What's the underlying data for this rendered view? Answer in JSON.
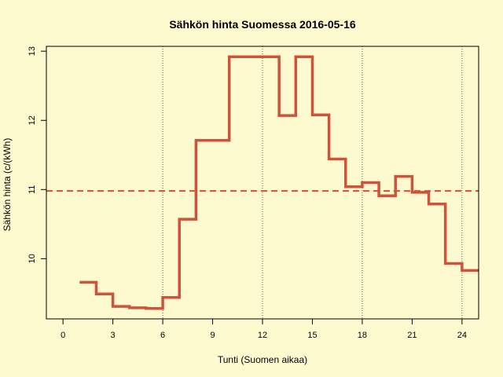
{
  "chart_data": {
    "type": "line",
    "style": "step",
    "title": "Sähkön hinta Suomessa 2016-05-16",
    "xlabel": "Tunti (Suomen aikaa)",
    "ylabel": "Sähkön hinta (c/(kWh)",
    "xlim": [
      -1,
      25
    ],
    "ylim": [
      9.13,
      13.07
    ],
    "x_ticks": [
      0,
      3,
      6,
      9,
      12,
      15,
      18,
      21,
      24
    ],
    "y_ticks": [
      10,
      11,
      12,
      13
    ],
    "vertical_gridlines_x": [
      6,
      12,
      18,
      24
    ],
    "mean_line_y": 10.98,
    "series": [
      {
        "x": [
          1,
          2,
          3,
          4,
          5,
          6,
          7,
          8,
          9,
          10,
          11,
          12,
          13,
          14,
          15,
          16,
          17,
          18,
          19,
          20,
          21,
          22,
          23,
          24
        ],
        "values": [
          9.66,
          9.49,
          9.31,
          9.29,
          9.28,
          9.44,
          10.57,
          11.71,
          11.71,
          12.92,
          12.92,
          12.92,
          12.07,
          12.92,
          12.08,
          11.44,
          11.04,
          11.1,
          10.91,
          11.19,
          10.96,
          10.79,
          9.93,
          9.83
        ]
      }
    ],
    "colors": {
      "line": "#d1523a",
      "mean_line": "#d1523a",
      "background": "#fefad0"
    }
  }
}
